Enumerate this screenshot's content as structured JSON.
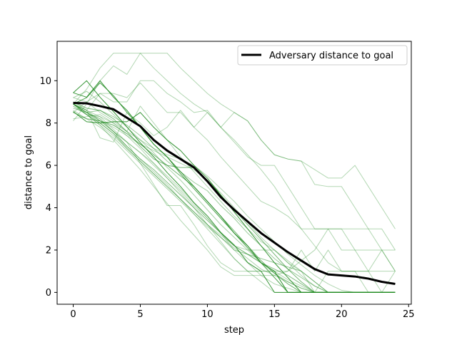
{
  "chart_data": {
    "type": "line",
    "title": "",
    "xlabel": "step",
    "ylabel": "distance to goal",
    "xlim": [
      -1.2,
      25.2
    ],
    "ylim": [
      -0.56,
      11.86
    ],
    "xticks": [
      0,
      5,
      10,
      15,
      20,
      25
    ],
    "yticks": [
      0,
      2,
      4,
      6,
      8,
      10
    ],
    "grid": false,
    "legend_position": "top-right",
    "colors": {
      "trajectory": "#228b22",
      "mean": "#000000"
    },
    "mean_series": {
      "name": "Adversary distance to goal",
      "x": [
        0,
        1,
        2,
        3,
        4,
        5,
        6,
        7,
        8,
        9,
        10,
        11,
        12,
        13,
        14,
        15,
        16,
        17,
        18,
        19,
        20,
        21,
        22,
        23,
        24
      ],
      "y": [
        8.95,
        8.93,
        8.8,
        8.65,
        8.25,
        7.85,
        7.2,
        6.7,
        6.3,
        5.9,
        5.25,
        4.5,
        3.9,
        3.35,
        2.8,
        2.35,
        1.9,
        1.5,
        1.1,
        0.85,
        0.8,
        0.75,
        0.65,
        0.5,
        0.4
      ]
    },
    "trajectories": [
      {
        "opacity": 0.9,
        "y": [
          9.43,
          10.0,
          9.22,
          8.54,
          7.82,
          7.07,
          6.4,
          5.66,
          5.0,
          4.24,
          3.61,
          2.83,
          2.24,
          1.41,
          1.0,
          0,
          0,
          0,
          0,
          0,
          0,
          0,
          0,
          0,
          0
        ]
      },
      {
        "opacity": 0.9,
        "y": [
          9.43,
          9.22,
          10.0,
          9.22,
          8.6,
          7.8,
          7.0,
          6.4,
          5.7,
          5.0,
          4.3,
          3.6,
          2.8,
          2.2,
          1.4,
          1.0,
          0,
          0,
          0,
          0,
          0,
          0,
          0,
          0,
          0
        ]
      },
      {
        "opacity": 0.9,
        "y": [
          8.54,
          8.06,
          8.0,
          8.06,
          8.06,
          8.5,
          7.8,
          7.2,
          6.7,
          6.0,
          5.4,
          4.6,
          3.8,
          3.0,
          2.2,
          1.4,
          0.7,
          0,
          0,
          0,
          0,
          0,
          0,
          0,
          0
        ]
      },
      {
        "opacity": 0.8,
        "y": [
          8.9,
          9.2,
          9.9,
          9.3,
          8.5,
          7.8,
          7.0,
          6.4,
          5.6,
          4.9,
          4.2,
          3.5,
          2.8,
          2.1,
          1.4,
          0.7,
          0,
          0,
          0,
          0,
          0,
          0,
          0,
          0,
          0
        ]
      },
      {
        "opacity": 0.65,
        "y": [
          8.5,
          8.2,
          8.1,
          7.9,
          7.5,
          7.0,
          6.5,
          6.0,
          5.5,
          5.0,
          4.3,
          3.6,
          2.9,
          2.2,
          1.5,
          0.9,
          0.4,
          0,
          0,
          0,
          0,
          0,
          0,
          0,
          0
        ]
      },
      {
        "opacity": 0.6,
        "y": [
          9.0,
          8.7,
          8.6,
          8.2,
          7.6,
          6.9,
          6.3,
          6.0,
          5.9,
          5.9,
          5.3,
          4.6,
          3.9,
          3.2,
          2.5,
          1.8,
          1.1,
          0.5,
          0,
          0,
          0,
          0,
          0,
          0,
          0
        ]
      },
      {
        "opacity": 0.55,
        "y": [
          8.9,
          8.5,
          8.2,
          7.6,
          6.9,
          6.3,
          5.8,
          5.2,
          4.6,
          4.0,
          3.4,
          2.8,
          2.2,
          1.8,
          1.4,
          1.1,
          0.8,
          0.4,
          0,
          0,
          0,
          0,
          0,
          0,
          0
        ]
      },
      {
        "opacity": 0.5,
        "y": [
          8.8,
          8.4,
          8.0,
          7.5,
          6.8,
          6.2,
          5.6,
          5.0,
          4.4,
          3.8,
          3.2,
          2.6,
          2.0,
          1.8,
          1.6,
          1.4,
          1.2,
          1.0,
          0.5,
          0,
          0,
          0,
          0,
          0,
          0
        ]
      },
      {
        "opacity": 0.45,
        "y": [
          8.7,
          8.5,
          8.6,
          8.3,
          7.9,
          7.4,
          6.8,
          6.2,
          5.7,
          5.2,
          4.8,
          4.1,
          3.5,
          2.8,
          2.2,
          1.6,
          1.1,
          0.7,
          0.3,
          0,
          0,
          0,
          0,
          0,
          0
        ]
      },
      {
        "opacity": 0.4,
        "y": [
          9.2,
          9.5,
          9.0,
          8.4,
          7.8,
          7.2,
          6.6,
          5.9,
          5.3,
          4.6,
          3.9,
          3.2,
          2.6,
          2.0,
          1.4,
          0.9,
          0.5,
          0.2,
          0,
          0,
          0,
          0,
          0,
          0,
          0
        ]
      },
      {
        "opacity": 0.38,
        "y": [
          8.6,
          8.2,
          7.8,
          7.3,
          6.7,
          6.1,
          5.5,
          4.9,
          4.3,
          3.7,
          3.1,
          2.6,
          2.1,
          1.6,
          1.1,
          0.8,
          0.5,
          0.2,
          0,
          0,
          0,
          0,
          0,
          0,
          0
        ]
      },
      {
        "opacity": 0.35,
        "y": [
          8.9,
          9.6,
          10.6,
          11.3,
          11.3,
          11.3,
          11.3,
          11.3,
          10.6,
          10.0,
          9.4,
          8.9,
          8.5,
          8.1,
          7.2,
          6.5,
          6.3,
          6.2,
          5.8,
          5.4,
          5.4,
          6.0,
          5.0,
          4.0,
          3.0
        ]
      },
      {
        "opacity": 0.35,
        "y": [
          8.1,
          8.9,
          10.0,
          10.7,
          10.3,
          11.3,
          10.6,
          10.0,
          9.4,
          8.9,
          8.5,
          7.8,
          8.5,
          8.1,
          7.2,
          6.5,
          6.3,
          6.2,
          5.1,
          5.0,
          5.0,
          4.0,
          3.0,
          3.0,
          2.0
        ]
      },
      {
        "opacity": 0.35,
        "y": [
          8.5,
          9.0,
          9.4,
          9.0,
          9.0,
          10.0,
          10.0,
          9.4,
          9.0,
          8.5,
          8.6,
          7.8,
          7.1,
          6.4,
          6.0,
          6.0,
          5.0,
          4.0,
          3.0,
          3.0,
          2.0,
          2.0,
          2.0,
          2.0,
          2.0
        ]
      },
      {
        "opacity": 0.35,
        "y": [
          8.9,
          8.6,
          9.4,
          9.4,
          9.2,
          9.9,
          9.2,
          8.5,
          8.5,
          7.8,
          7.2,
          6.4,
          5.7,
          5.0,
          4.3,
          4.0,
          3.6,
          3.0,
          3.0,
          3.0,
          3.0,
          3.0,
          3.0,
          2.0,
          1.0
        ]
      },
      {
        "opacity": 0.35,
        "y": [
          9.0,
          8.6,
          7.3,
          7.1,
          8.5,
          8.0,
          7.4,
          7.8,
          8.6,
          7.8,
          8.5,
          7.8,
          7.2,
          6.5,
          5.8,
          5.0,
          4.0,
          3.0,
          2.2,
          1.4,
          1.0,
          1.0,
          1.0,
          1.0,
          1.0
        ]
      },
      {
        "opacity": 0.35,
        "y": [
          8.9,
          8.6,
          8.1,
          7.6,
          7.1,
          6.6,
          6.0,
          5.4,
          4.8,
          4.1,
          3.5,
          2.8,
          2.2,
          2.0,
          2.0,
          2.0,
          1.4,
          1.0,
          0,
          1.0,
          1.0,
          1.0,
          1.0,
          0,
          1.0
        ]
      },
      {
        "opacity": 0.35,
        "y": [
          8.9,
          8.4,
          8.3,
          7.7,
          7.1,
          6.1,
          5.1,
          4.1,
          4.1,
          3.2,
          2.2,
          1.4,
          1.0,
          1.0,
          1.0,
          1.0,
          1.0,
          2.0,
          1.0,
          2.0,
          1.0,
          1.0,
          0,
          0,
          0
        ]
      },
      {
        "opacity": 0.35,
        "y": [
          8.9,
          8.4,
          7.9,
          7.2,
          6.5,
          5.8,
          5.0,
          4.2,
          3.4,
          2.7,
          2.0,
          1.2,
          0.8,
          0.8,
          0.8,
          0.8,
          1.0,
          1.5,
          2.0,
          3.0,
          3.0,
          2.0,
          1.0,
          2.0,
          1.0
        ]
      },
      {
        "opacity": 0.35,
        "y": [
          8.9,
          8.5,
          8.1,
          7.6,
          7.1,
          6.6,
          6.1,
          5.5,
          4.9,
          4.2,
          3.5,
          2.8,
          2.0,
          1.4,
          0.8,
          0.4,
          0.2,
          0,
          0,
          0,
          0,
          0,
          0,
          0,
          0
        ]
      },
      {
        "opacity": 0.35,
        "y": [
          8.2,
          8.3,
          8.4,
          8.0,
          7.4,
          6.8,
          6.1,
          5.4,
          4.7,
          4.0,
          3.2,
          2.4,
          1.6,
          1.0,
          1.0,
          1.0,
          0,
          0,
          0,
          0,
          0,
          0,
          0,
          0,
          0
        ]
      },
      {
        "opacity": 0.35,
        "y": [
          9.2,
          9.0,
          8.5,
          8.1,
          7.6,
          8.8,
          8.0,
          7.2,
          6.4,
          5.7,
          5.0,
          4.3,
          3.6,
          3.0,
          2.4,
          2.0,
          1.5,
          1.0,
          0.5,
          0,
          0,
          0,
          0,
          0,
          0
        ]
      },
      {
        "opacity": 0.35,
        "y": [
          8.9,
          8.5,
          8.0,
          7.5,
          6.9,
          6.3,
          5.7,
          5.1,
          4.4,
          3.7,
          3.0,
          2.3,
          1.6,
          1.0,
          0.5,
          0,
          0,
          0,
          0,
          0,
          0,
          0,
          0,
          0,
          0
        ]
      },
      {
        "opacity": 0.35,
        "y": [
          8.9,
          8.4,
          7.9,
          7.4,
          6.8,
          6.2,
          5.6,
          5.0,
          4.4,
          3.8,
          3.2,
          2.7,
          2.2,
          1.8,
          1.4,
          1.0,
          0.6,
          0.3,
          0,
          0,
          0,
          0,
          0,
          0,
          0
        ]
      },
      {
        "opacity": 0.35,
        "y": [
          8.9,
          8.6,
          8.3,
          8.0,
          7.6,
          7.2,
          6.8,
          6.5,
          6.3,
          6.0,
          5.5,
          4.9,
          4.3,
          3.6,
          3.0,
          2.4,
          1.8,
          1.3,
          0.8,
          0.4,
          0.1,
          0,
          0,
          0,
          0
        ]
      },
      {
        "opacity": 0.35,
        "y": [
          8.9,
          8.5,
          8.1,
          7.8,
          7.4,
          7.0,
          6.7,
          6.4,
          6.1,
          5.8,
          5.3,
          4.7,
          4.0,
          3.3,
          2.6,
          2.0,
          1.4,
          0.8,
          0.3,
          0,
          0,
          0,
          0,
          0,
          0
        ]
      }
    ]
  }
}
